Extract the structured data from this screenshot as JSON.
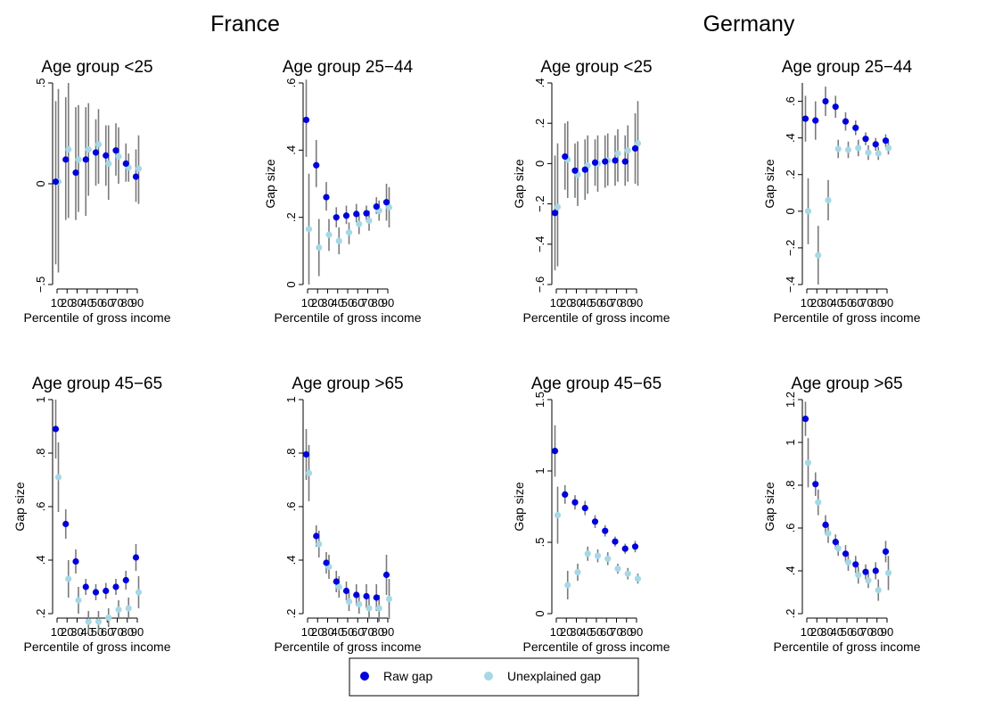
{
  "figure": {
    "countries": [
      "France",
      "Germany"
    ],
    "legend": {
      "items": [
        {
          "label": "Raw gap",
          "color": "#0000dd"
        },
        {
          "label": "Unexplained gap",
          "color": "#a6d8e6"
        }
      ]
    },
    "ci_color": "#7a7a7a"
  },
  "chart_data": [
    {
      "type": "scatter",
      "country": "France",
      "title": "Age group <25",
      "xlabel": "Percentile of gross income",
      "ylabel": "",
      "x": [
        10,
        20,
        30,
        40,
        50,
        60,
        70,
        80,
        90
      ],
      "xticks": [
        10,
        20,
        30,
        40,
        50,
        60,
        70,
        80,
        90
      ],
      "ylim": [
        -0.5,
        0.5
      ],
      "yticks": [
        -0.5,
        0,
        0.5
      ],
      "ytick_labels": [
        "−.5",
        "0",
        ".5"
      ],
      "series": [
        {
          "name": "Raw gap",
          "values": [
            0.01,
            0.12,
            0.055,
            0.12,
            0.155,
            0.14,
            0.165,
            0.1,
            0.035
          ],
          "ci_low": [
            -0.4,
            -0.18,
            -0.18,
            -0.16,
            -0.01,
            -0.01,
            0.04,
            0.01,
            -0.09
          ],
          "ci_high": [
            0.41,
            0.43,
            0.38,
            0.38,
            0.32,
            0.29,
            0.3,
            0.2,
            0.17
          ]
        },
        {
          "name": "Unexplained gap",
          "values": [
            0.01,
            0.17,
            0.12,
            0.17,
            0.195,
            0.1,
            0.135,
            0.08,
            0.075
          ],
          "ci_low": [
            -0.44,
            -0.17,
            -0.14,
            -0.06,
            0.0,
            -0.08,
            0.0,
            0.01,
            -0.1
          ],
          "ci_high": [
            0.47,
            0.5,
            0.39,
            0.4,
            0.37,
            0.29,
            0.28,
            0.15,
            0.24
          ]
        }
      ]
    },
    {
      "type": "scatter",
      "country": "France",
      "title": "Age group 25−44",
      "xlabel": "Percentile of gross income",
      "ylabel": "Gap size",
      "x": [
        10,
        20,
        30,
        40,
        50,
        60,
        70,
        80,
        90
      ],
      "xticks": [
        10,
        20,
        30,
        40,
        50,
        60,
        70,
        80,
        90
      ],
      "ylim": [
        0,
        0.6
      ],
      "yticks": [
        0,
        0.2,
        0.4,
        0.6
      ],
      "ytick_labels": [
        "0",
        ".2",
        ".4",
        ".6"
      ],
      "series": [
        {
          "name": "Raw gap",
          "values": [
            0.49,
            0.355,
            0.26,
            0.2,
            0.205,
            0.21,
            0.212,
            0.232,
            0.245
          ],
          "ci_low": [
            0.38,
            0.29,
            0.22,
            0.17,
            0.18,
            0.185,
            0.19,
            0.21,
            0.19
          ],
          "ci_high": [
            0.61,
            0.43,
            0.305,
            0.23,
            0.235,
            0.24,
            0.235,
            0.26,
            0.3
          ]
        },
        {
          "name": "Unexplained gap",
          "values": [
            0.165,
            0.11,
            0.148,
            0.13,
            0.155,
            0.18,
            0.19,
            0.22,
            0.23
          ],
          "ci_low": [
            0.0,
            0.025,
            0.1,
            0.09,
            0.12,
            0.15,
            0.16,
            0.19,
            0.17
          ],
          "ci_high": [
            0.33,
            0.195,
            0.195,
            0.17,
            0.185,
            0.21,
            0.22,
            0.25,
            0.29
          ]
        }
      ]
    },
    {
      "type": "scatter",
      "country": "Germany",
      "title": "Age group <25",
      "xlabel": "Percentile of gross income",
      "ylabel": "Gap size",
      "x": [
        10,
        20,
        30,
        40,
        50,
        60,
        70,
        80,
        90
      ],
      "xticks": [
        10,
        20,
        30,
        40,
        50,
        60,
        70,
        80,
        90
      ],
      "ylim": [
        -0.6,
        0.4
      ],
      "yticks": [
        -0.6,
        -0.4,
        -0.2,
        0,
        0.2,
        0.4
      ],
      "ytick_labels": [
        "−.6",
        "−.4",
        "−.2",
        "0",
        ".2",
        ".4"
      ],
      "series": [
        {
          "name": "Raw gap",
          "values": [
            -0.245,
            0.035,
            -0.035,
            -0.03,
            0.005,
            0.01,
            0.015,
            0.01,
            0.075
          ],
          "ci_low": [
            -0.53,
            -0.13,
            -0.17,
            -0.18,
            -0.11,
            -0.12,
            -0.11,
            -0.11,
            -0.1
          ],
          "ci_high": [
            0.04,
            0.2,
            0.1,
            0.12,
            0.12,
            0.14,
            0.14,
            0.14,
            0.25
          ]
        },
        {
          "name": "Unexplained gap",
          "values": [
            -0.215,
            0.02,
            -0.055,
            -0.01,
            0.0,
            0.015,
            0.05,
            0.065,
            0.1
          ],
          "ci_low": [
            -0.51,
            -0.17,
            -0.21,
            -0.15,
            -0.14,
            -0.11,
            -0.09,
            -0.09,
            -0.11
          ],
          "ci_high": [
            0.1,
            0.21,
            0.11,
            0.14,
            0.14,
            0.15,
            0.17,
            0.19,
            0.31
          ]
        }
      ]
    },
    {
      "type": "scatter",
      "country": "Germany",
      "title": "Age group 25−44",
      "xlabel": "Percentile of gross income",
      "ylabel": "Gap size",
      "x": [
        10,
        20,
        30,
        40,
        50,
        60,
        70,
        80,
        90
      ],
      "xticks": [
        10,
        20,
        30,
        40,
        50,
        60,
        70,
        80,
        90
      ],
      "ylim": [
        -0.4,
        0.7
      ],
      "yticks": [
        -0.4,
        -0.2,
        0,
        0.2,
        0.4,
        0.6
      ],
      "ytick_labels": [
        "−.4",
        "−.2",
        "0",
        ".2",
        ".4",
        ".6"
      ],
      "series": [
        {
          "name": "Raw gap",
          "values": [
            0.505,
            0.495,
            0.6,
            0.57,
            0.49,
            0.455,
            0.395,
            0.365,
            0.385
          ],
          "ci_low": [
            0.38,
            0.39,
            0.52,
            0.51,
            0.44,
            0.415,
            0.36,
            0.33,
            0.35
          ],
          "ci_high": [
            0.63,
            0.6,
            0.68,
            0.63,
            0.54,
            0.495,
            0.43,
            0.4,
            0.42
          ]
        },
        {
          "name": "Unexplained gap",
          "values": [
            0.0,
            -0.24,
            0.06,
            0.34,
            0.335,
            0.345,
            0.32,
            0.315,
            0.345
          ],
          "ci_low": [
            -0.18,
            -0.4,
            -0.05,
            0.29,
            0.29,
            0.3,
            0.28,
            0.28,
            0.31
          ],
          "ci_high": [
            0.18,
            -0.08,
            0.17,
            0.39,
            0.38,
            0.39,
            0.36,
            0.35,
            0.38
          ]
        }
      ]
    },
    {
      "type": "scatter",
      "country": "France",
      "title": "Age group 45−65",
      "xlabel": "Percentile of gross income",
      "ylabel": "Gap size",
      "x": [
        10,
        20,
        30,
        40,
        50,
        60,
        70,
        80,
        90
      ],
      "xticks": [
        10,
        20,
        30,
        40,
        50,
        60,
        70,
        80,
        90
      ],
      "ylim": [
        0.2,
        1.0
      ],
      "yticks": [
        0.2,
        0.4,
        0.6,
        0.8,
        1.0
      ],
      "ytick_labels": [
        ".2",
        ".4",
        ".6",
        ".8",
        "1"
      ],
      "series": [
        {
          "name": "Raw gap",
          "values": [
            0.89,
            0.535,
            0.395,
            0.3,
            0.28,
            0.285,
            0.3,
            0.325,
            0.41
          ],
          "ci_low": [
            0.78,
            0.48,
            0.35,
            0.27,
            0.25,
            0.255,
            0.27,
            0.29,
            0.36
          ],
          "ci_high": [
            1.0,
            0.59,
            0.44,
            0.33,
            0.31,
            0.315,
            0.33,
            0.36,
            0.46
          ]
        },
        {
          "name": "Unexplained gap",
          "values": [
            0.71,
            0.33,
            0.25,
            0.17,
            0.17,
            0.185,
            0.215,
            0.22,
            0.28
          ],
          "ci_low": [
            0.58,
            0.26,
            0.2,
            0.13,
            0.13,
            0.15,
            0.18,
            0.18,
            0.22
          ],
          "ci_high": [
            0.84,
            0.4,
            0.3,
            0.21,
            0.21,
            0.22,
            0.25,
            0.26,
            0.34
          ]
        }
      ]
    },
    {
      "type": "scatter",
      "country": "France",
      "title": "Age group >65",
      "xlabel": "Percentile of gross income",
      "ylabel": "",
      "x": [
        10,
        20,
        30,
        40,
        50,
        60,
        70,
        80,
        90
      ],
      "xticks": [
        10,
        20,
        30,
        40,
        50,
        60,
        70,
        80,
        90
      ],
      "ylim": [
        0.2,
        1.0
      ],
      "yticks": [
        0.2,
        0.4,
        0.6,
        0.8,
        1.0
      ],
      "ytick_labels": [
        ".2",
        ".4",
        ".6",
        ".8",
        "1"
      ],
      "series": [
        {
          "name": "Raw gap",
          "values": [
            0.795,
            0.49,
            0.39,
            0.32,
            0.285,
            0.27,
            0.265,
            0.26,
            0.345
          ],
          "ci_low": [
            0.7,
            0.45,
            0.35,
            0.28,
            0.25,
            0.23,
            0.22,
            0.21,
            0.27
          ],
          "ci_high": [
            0.89,
            0.53,
            0.43,
            0.36,
            0.32,
            0.31,
            0.31,
            0.31,
            0.42
          ]
        },
        {
          "name": "Unexplained gap",
          "values": [
            0.725,
            0.46,
            0.375,
            0.3,
            0.245,
            0.235,
            0.22,
            0.22,
            0.255
          ],
          "ci_low": [
            0.62,
            0.41,
            0.33,
            0.26,
            0.21,
            0.2,
            0.18,
            0.17,
            0.18
          ],
          "ci_high": [
            0.83,
            0.51,
            0.42,
            0.34,
            0.28,
            0.27,
            0.26,
            0.27,
            0.33
          ]
        }
      ]
    },
    {
      "type": "scatter",
      "country": "Germany",
      "title": "Age group 45−65",
      "xlabel": "Percentile of gross income",
      "ylabel": "Gap size",
      "x": [
        10,
        20,
        30,
        40,
        50,
        60,
        70,
        80,
        90
      ],
      "xticks": [
        10,
        20,
        30,
        40,
        50,
        60,
        70,
        80,
        90
      ],
      "ylim": [
        0,
        1.5
      ],
      "yticks": [
        0,
        0.5,
        1.0,
        1.5
      ],
      "ytick_labels": [
        "0",
        ".5",
        "1",
        "1.5"
      ],
      "series": [
        {
          "name": "Raw gap",
          "values": [
            1.14,
            0.835,
            0.78,
            0.74,
            0.645,
            0.58,
            0.505,
            0.455,
            0.47
          ],
          "ci_low": [
            0.96,
            0.77,
            0.73,
            0.69,
            0.6,
            0.54,
            0.47,
            0.42,
            0.43
          ],
          "ci_high": [
            1.32,
            0.9,
            0.83,
            0.79,
            0.69,
            0.62,
            0.54,
            0.49,
            0.51
          ]
        },
        {
          "name": "Unexplained gap",
          "values": [
            0.69,
            0.2,
            0.29,
            0.42,
            0.405,
            0.385,
            0.315,
            0.28,
            0.245
          ],
          "ci_low": [
            0.49,
            0.1,
            0.23,
            0.37,
            0.36,
            0.34,
            0.28,
            0.24,
            0.21
          ],
          "ci_high": [
            0.89,
            0.3,
            0.35,
            0.47,
            0.45,
            0.43,
            0.35,
            0.32,
            0.28
          ]
        }
      ]
    },
    {
      "type": "scatter",
      "country": "Germany",
      "title": "Age group >65",
      "xlabel": "Percentile of gross income",
      "ylabel": "Gap size",
      "x": [
        10,
        20,
        30,
        40,
        50,
        60,
        70,
        80,
        90
      ],
      "xticks": [
        10,
        20,
        30,
        40,
        50,
        60,
        70,
        80,
        90
      ],
      "ylim": [
        0.2,
        1.2
      ],
      "yticks": [
        0.2,
        0.4,
        0.6,
        0.8,
        1.0,
        1.2
      ],
      "ytick_labels": [
        ".2",
        ".4",
        ".6",
        ".8",
        "1",
        "1.2"
      ],
      "series": [
        {
          "name": "Raw gap",
          "values": [
            1.11,
            0.805,
            0.615,
            0.535,
            0.48,
            0.43,
            0.395,
            0.4,
            0.49
          ],
          "ci_low": [
            1.03,
            0.75,
            0.57,
            0.5,
            0.44,
            0.39,
            0.36,
            0.36,
            0.44
          ],
          "ci_high": [
            1.19,
            0.86,
            0.66,
            0.57,
            0.52,
            0.47,
            0.43,
            0.44,
            0.54
          ]
        },
        {
          "name": "Unexplained gap",
          "values": [
            0.905,
            0.72,
            0.575,
            0.505,
            0.44,
            0.38,
            0.355,
            0.31,
            0.39
          ],
          "ci_low": [
            0.79,
            0.66,
            0.53,
            0.47,
            0.4,
            0.34,
            0.32,
            0.26,
            0.31
          ],
          "ci_high": [
            1.02,
            0.78,
            0.62,
            0.54,
            0.48,
            0.42,
            0.39,
            0.36,
            0.47
          ]
        }
      ]
    }
  ]
}
